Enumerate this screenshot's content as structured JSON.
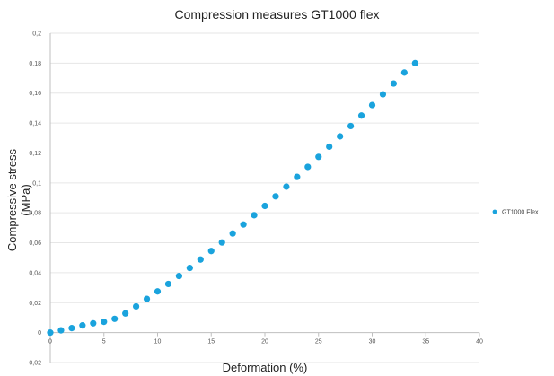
{
  "chart_data": {
    "type": "scatter",
    "title": "Compression measures GT1000 flex",
    "xlabel": "Deformation (%)",
    "ylabel": "Compressive stress (MPa)",
    "xlim": [
      0,
      40
    ],
    "ylim": [
      -0.02,
      0.2
    ],
    "x_ticks": [
      0,
      5,
      10,
      15,
      20,
      25,
      30,
      35,
      40
    ],
    "y_ticks": [
      -0.02,
      0,
      0.02,
      0.04,
      0.06,
      0.08,
      0.1,
      0.12,
      0.14,
      0.16,
      0.18,
      0.2
    ],
    "x_tick_labels": [
      "0",
      "5",
      "10",
      "15",
      "20",
      "25",
      "30",
      "35",
      "40"
    ],
    "y_tick_labels": [
      "-0,02",
      "0",
      "0,02",
      "0,04",
      "0,06",
      "0,08",
      "0,1",
      "0,12",
      "0,14",
      "0,16",
      "0,18",
      "0,2"
    ],
    "grid": true,
    "legend_position": "right",
    "series": [
      {
        "name": "GT1000 Flex",
        "color": "#1aa3dd",
        "points": [
          [
            0,
            0.0
          ],
          [
            1,
            0.0015
          ],
          [
            2,
            0.003
          ],
          [
            3,
            0.0048
          ],
          [
            4,
            0.0062
          ],
          [
            5,
            0.0072
          ],
          [
            6,
            0.0092
          ],
          [
            7,
            0.0128
          ],
          [
            8,
            0.0175
          ],
          [
            9,
            0.0225
          ],
          [
            10,
            0.0275
          ],
          [
            11,
            0.0325
          ],
          [
            12,
            0.0378
          ],
          [
            13,
            0.0432
          ],
          [
            14,
            0.0488
          ],
          [
            15,
            0.0545
          ],
          [
            16,
            0.0602
          ],
          [
            17,
            0.0662
          ],
          [
            18,
            0.0722
          ],
          [
            19,
            0.0784
          ],
          [
            20,
            0.0846
          ],
          [
            21,
            0.091
          ],
          [
            22,
            0.0975
          ],
          [
            23,
            0.104
          ],
          [
            24,
            0.1107
          ],
          [
            25,
            0.1174
          ],
          [
            26,
            0.1242
          ],
          [
            27,
            0.1311
          ],
          [
            28,
            0.138
          ],
          [
            29,
            0.145
          ],
          [
            30,
            0.152
          ],
          [
            31,
            0.1592
          ],
          [
            32,
            0.1664
          ],
          [
            33,
            0.1737
          ],
          [
            34,
            0.18
          ]
        ]
      }
    ]
  }
}
